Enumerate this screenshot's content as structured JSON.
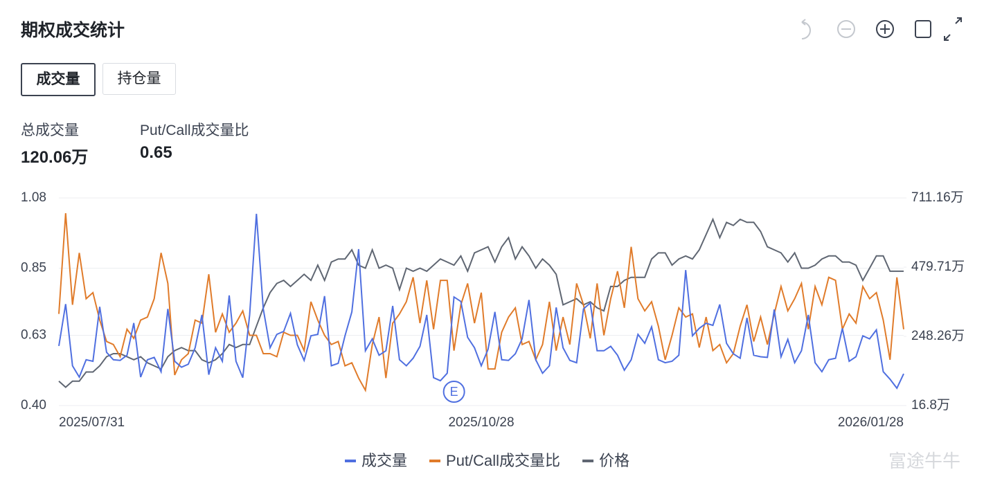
{
  "header": {
    "title": "期权成交统计"
  },
  "tabs": [
    "成交量",
    "持仓量"
  ],
  "stats": [
    {
      "label": "总成交量",
      "value": "120.06万"
    },
    {
      "label": "Put/Call成交量比",
      "value": "0.65"
    }
  ],
  "watermark": "富途牛牛",
  "chart_data": {
    "type": "line",
    "categories": [
      "2025/07/31",
      null,
      null,
      null,
      null,
      null,
      null,
      null,
      null,
      null,
      null,
      null,
      null,
      null,
      null,
      null,
      null,
      null,
      null,
      null,
      null,
      null,
      null,
      null,
      null,
      null,
      null,
      null,
      null,
      null,
      null,
      null,
      null,
      null,
      null,
      null,
      null,
      null,
      null,
      null,
      null,
      null,
      null,
      null,
      null,
      null,
      null,
      null,
      null,
      null,
      null,
      null,
      null,
      null,
      null,
      null,
      null,
      null,
      null,
      null,
      null,
      null,
      "2025/10/28",
      null,
      null,
      null,
      null,
      null,
      null,
      null,
      null,
      null,
      null,
      null,
      null,
      null,
      null,
      null,
      null,
      null,
      null,
      null,
      null,
      null,
      null,
      null,
      null,
      null,
      null,
      null,
      null,
      null,
      null,
      null,
      null,
      null,
      null,
      null,
      null,
      null,
      null,
      null,
      null,
      null,
      null,
      null,
      null,
      null,
      null,
      null,
      null,
      null,
      null,
      null,
      null,
      null,
      null,
      null,
      null,
      null,
      null,
      null,
      null,
      null,
      "2026/01/28"
    ],
    "series": [
      {
        "name": "成交量",
        "color": "#4f6fe0",
        "axis": "y2",
        "values": [
          216,
          356,
          150,
          112,
          170,
          165,
          347,
          195,
          170,
          168,
          185,
          293,
          112,
          170,
          178,
          130,
          340,
          165,
          145,
          155,
          210,
          320,
          120,
          210,
          165,
          385,
          165,
          110,
          320,
          658,
          340,
          210,
          255,
          265,
          325,
          220,
          168,
          250,
          255,
          383,
          150,
          158,
          250,
          330,
          540,
          200,
          240,
          185,
          200,
          350,
          170,
          150,
          175,
          215,
          320,
          110,
          100,
          125,
          380,
          365,
          245,
          210,
          150,
          205,
          330,
          170,
          168,
          190,
          240,
          370,
          170,
          125,
          150,
          345,
          210,
          168,
          160,
          340,
          360,
          200,
          200,
          215,
          185,
          135,
          170,
          255,
          225,
          280,
          170,
          160,
          165,
          185,
          470,
          250,
          275,
          292,
          285,
          355,
          225,
          190,
          175,
          310,
          185,
          180,
          178,
          338,
          180,
          238,
          160,
          200,
          320,
          160,
          130,
          170,
          175,
          275,
          165,
          180,
          250,
          240,
          270,
          130,
          105,
          75,
          123
        ]
      },
      {
        "name": "Put/Call成交量比",
        "color": "#e07b2a",
        "values": [
          0.7,
          1.03,
          0.73,
          0.9,
          0.75,
          0.77,
          0.68,
          0.61,
          0.6,
          0.56,
          0.65,
          0.62,
          0.68,
          0.69,
          0.75,
          0.9,
          0.8,
          0.5,
          0.55,
          0.57,
          0.68,
          0.67,
          0.83,
          0.64,
          0.7,
          0.64,
          0.67,
          0.71,
          0.63,
          0.63,
          0.57,
          0.57,
          0.56,
          0.64,
          0.63,
          0.63,
          0.58,
          0.74,
          0.68,
          0.63,
          0.6,
          0.61,
          0.53,
          0.54,
          0.49,
          0.45,
          0.6,
          0.69,
          0.49,
          0.67,
          0.7,
          0.74,
          0.82,
          0.67,
          0.81,
          0.65,
          0.81,
          0.81,
          0.58,
          0.73,
          0.8,
          0.67,
          0.77,
          0.52,
          0.52,
          0.64,
          0.69,
          0.72,
          0.6,
          0.61,
          0.55,
          0.6,
          0.74,
          0.58,
          0.69,
          0.6,
          0.8,
          0.73,
          0.62,
          0.8,
          0.63,
          0.75,
          0.84,
          0.72,
          0.92,
          0.75,
          0.71,
          0.74,
          0.66,
          0.55,
          0.63,
          0.72,
          0.69,
          0.7,
          0.59,
          0.69,
          0.58,
          0.6,
          0.54,
          0.57,
          0.66,
          0.73,
          0.61,
          0.69,
          0.6,
          0.7,
          0.79,
          0.71,
          0.75,
          0.8,
          0.65,
          0.79,
          0.73,
          0.82,
          0.81,
          0.65,
          0.7,
          0.67,
          0.79,
          0.75,
          0.77,
          0.68,
          0.55,
          0.82,
          0.65
        ]
      },
      {
        "name": "价格",
        "color": "#5f6672",
        "values": [
          0.48,
          0.46,
          0.48,
          0.48,
          0.51,
          0.51,
          0.53,
          0.56,
          0.57,
          0.57,
          0.56,
          0.55,
          0.56,
          0.54,
          0.53,
          0.52,
          0.56,
          0.58,
          0.59,
          0.58,
          0.58,
          0.55,
          0.54,
          0.55,
          0.57,
          0.6,
          0.59,
          0.6,
          0.6,
          0.66,
          0.72,
          0.77,
          0.8,
          0.81,
          0.79,
          0.81,
          0.83,
          0.81,
          0.86,
          0.81,
          0.87,
          0.88,
          0.88,
          0.91,
          0.86,
          0.85,
          0.91,
          0.85,
          0.86,
          0.85,
          0.78,
          0.85,
          0.84,
          0.85,
          0.84,
          0.86,
          0.88,
          0.87,
          0.86,
          0.89,
          0.84,
          0.9,
          0.91,
          0.92,
          0.87,
          0.92,
          0.95,
          0.88,
          0.92,
          0.89,
          0.85,
          0.88,
          0.86,
          0.83,
          0.73,
          0.74,
          0.75,
          0.73,
          0.74,
          0.72,
          0.71,
          0.79,
          0.79,
          0.81,
          0.82,
          0.82,
          0.82,
          0.88,
          0.9,
          0.9,
          0.86,
          0.88,
          0.89,
          0.88,
          0.91,
          0.96,
          1.01,
          0.95,
          1.0,
          0.99,
          1.01,
          1.0,
          1.0,
          0.97,
          0.92,
          0.91,
          0.9,
          0.87,
          0.9,
          0.85,
          0.85,
          0.86,
          0.88,
          0.89,
          0.89,
          0.87,
          0.87,
          0.86,
          0.81,
          0.85,
          0.89,
          0.89,
          0.84,
          0.84,
          0.84
        ]
      }
    ],
    "ylim": [
      0.4,
      1.08
    ],
    "yticks": [
      {
        "value": 0.4,
        "label": "0.40"
      },
      0.63,
      0.85,
      1.08
    ],
    "y2lim": [
      16.8,
      711.16
    ],
    "y2ticks": [
      {
        "value": 16.8,
        "label": "16.8万"
      },
      {
        "value": 248.26,
        "label": "248.26万"
      },
      {
        "value": 479.71,
        "label": "479.71万"
      },
      {
        "value": 711.16,
        "label": "711.16万"
      }
    ],
    "grid": true,
    "event_marker": "E"
  }
}
